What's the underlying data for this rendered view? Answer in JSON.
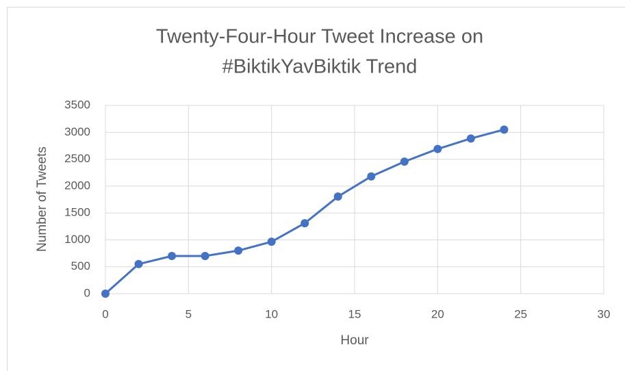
{
  "chart_data": {
    "type": "line",
    "title": [
      "Twenty-Four-Hour Tweet Increase on",
      "#BiktikYavBiktik Trend"
    ],
    "x_label": "Hour",
    "y_label": "Number of Tweets",
    "x": [
      0,
      2,
      4,
      6,
      8,
      10,
      12,
      14,
      16,
      18,
      20,
      22,
      24
    ],
    "series": [
      {
        "color": "#4472c4",
        "values": [
          0,
          550,
          700,
          700,
          800,
          965,
          1310,
          1805,
          2180,
          2455,
          2690,
          2885,
          3050
        ]
      }
    ],
    "xlim": [
      0,
      30
    ],
    "xticks": [
      0,
      5,
      10,
      15,
      20,
      25,
      30
    ],
    "ylim": [
      0,
      3500
    ],
    "yticks": [
      0,
      500,
      1000,
      1500,
      2000,
      2500,
      3000,
      3500
    ],
    "grid": true,
    "markers": true
  }
}
